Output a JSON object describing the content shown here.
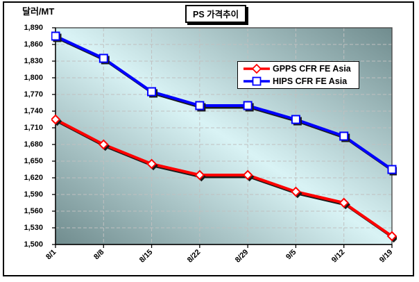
{
  "chart_data": {
    "type": "line",
    "title": "PS 가격추이",
    "ylabel": "달러/MT",
    "xlabel": "",
    "categories": [
      "8/1",
      "8/8",
      "8/15",
      "8/22",
      "8/29",
      "9/5",
      "9/12",
      "9/19"
    ],
    "series": [
      {
        "name": "GPPS CFR FE Asia",
        "color": "#ff0000",
        "marker": "diamond",
        "values": [
          1725,
          1680,
          1645,
          1625,
          1625,
          1595,
          1575,
          1515
        ]
      },
      {
        "name": "HIPS CFR FE Asia",
        "color": "#0000ff",
        "marker": "square",
        "values": [
          1875,
          1835,
          1775,
          1750,
          1750,
          1725,
          1695,
          1635
        ]
      }
    ],
    "ylim": [
      1500,
      1890
    ],
    "ytick_step": 30,
    "grid": true,
    "legend_position": "inside-top-right",
    "colors": {
      "plot_bg_light": "#d9f3f5",
      "plot_bg_dark": "#708c8e",
      "gridline": "#c0c0c0",
      "plot_border": "#4a4a4a",
      "axis": "#000000",
      "marker_fill": "#ffffff",
      "shadow": "#1a1a1a",
      "text": "#000000",
      "frame_border": "#000000"
    }
  }
}
